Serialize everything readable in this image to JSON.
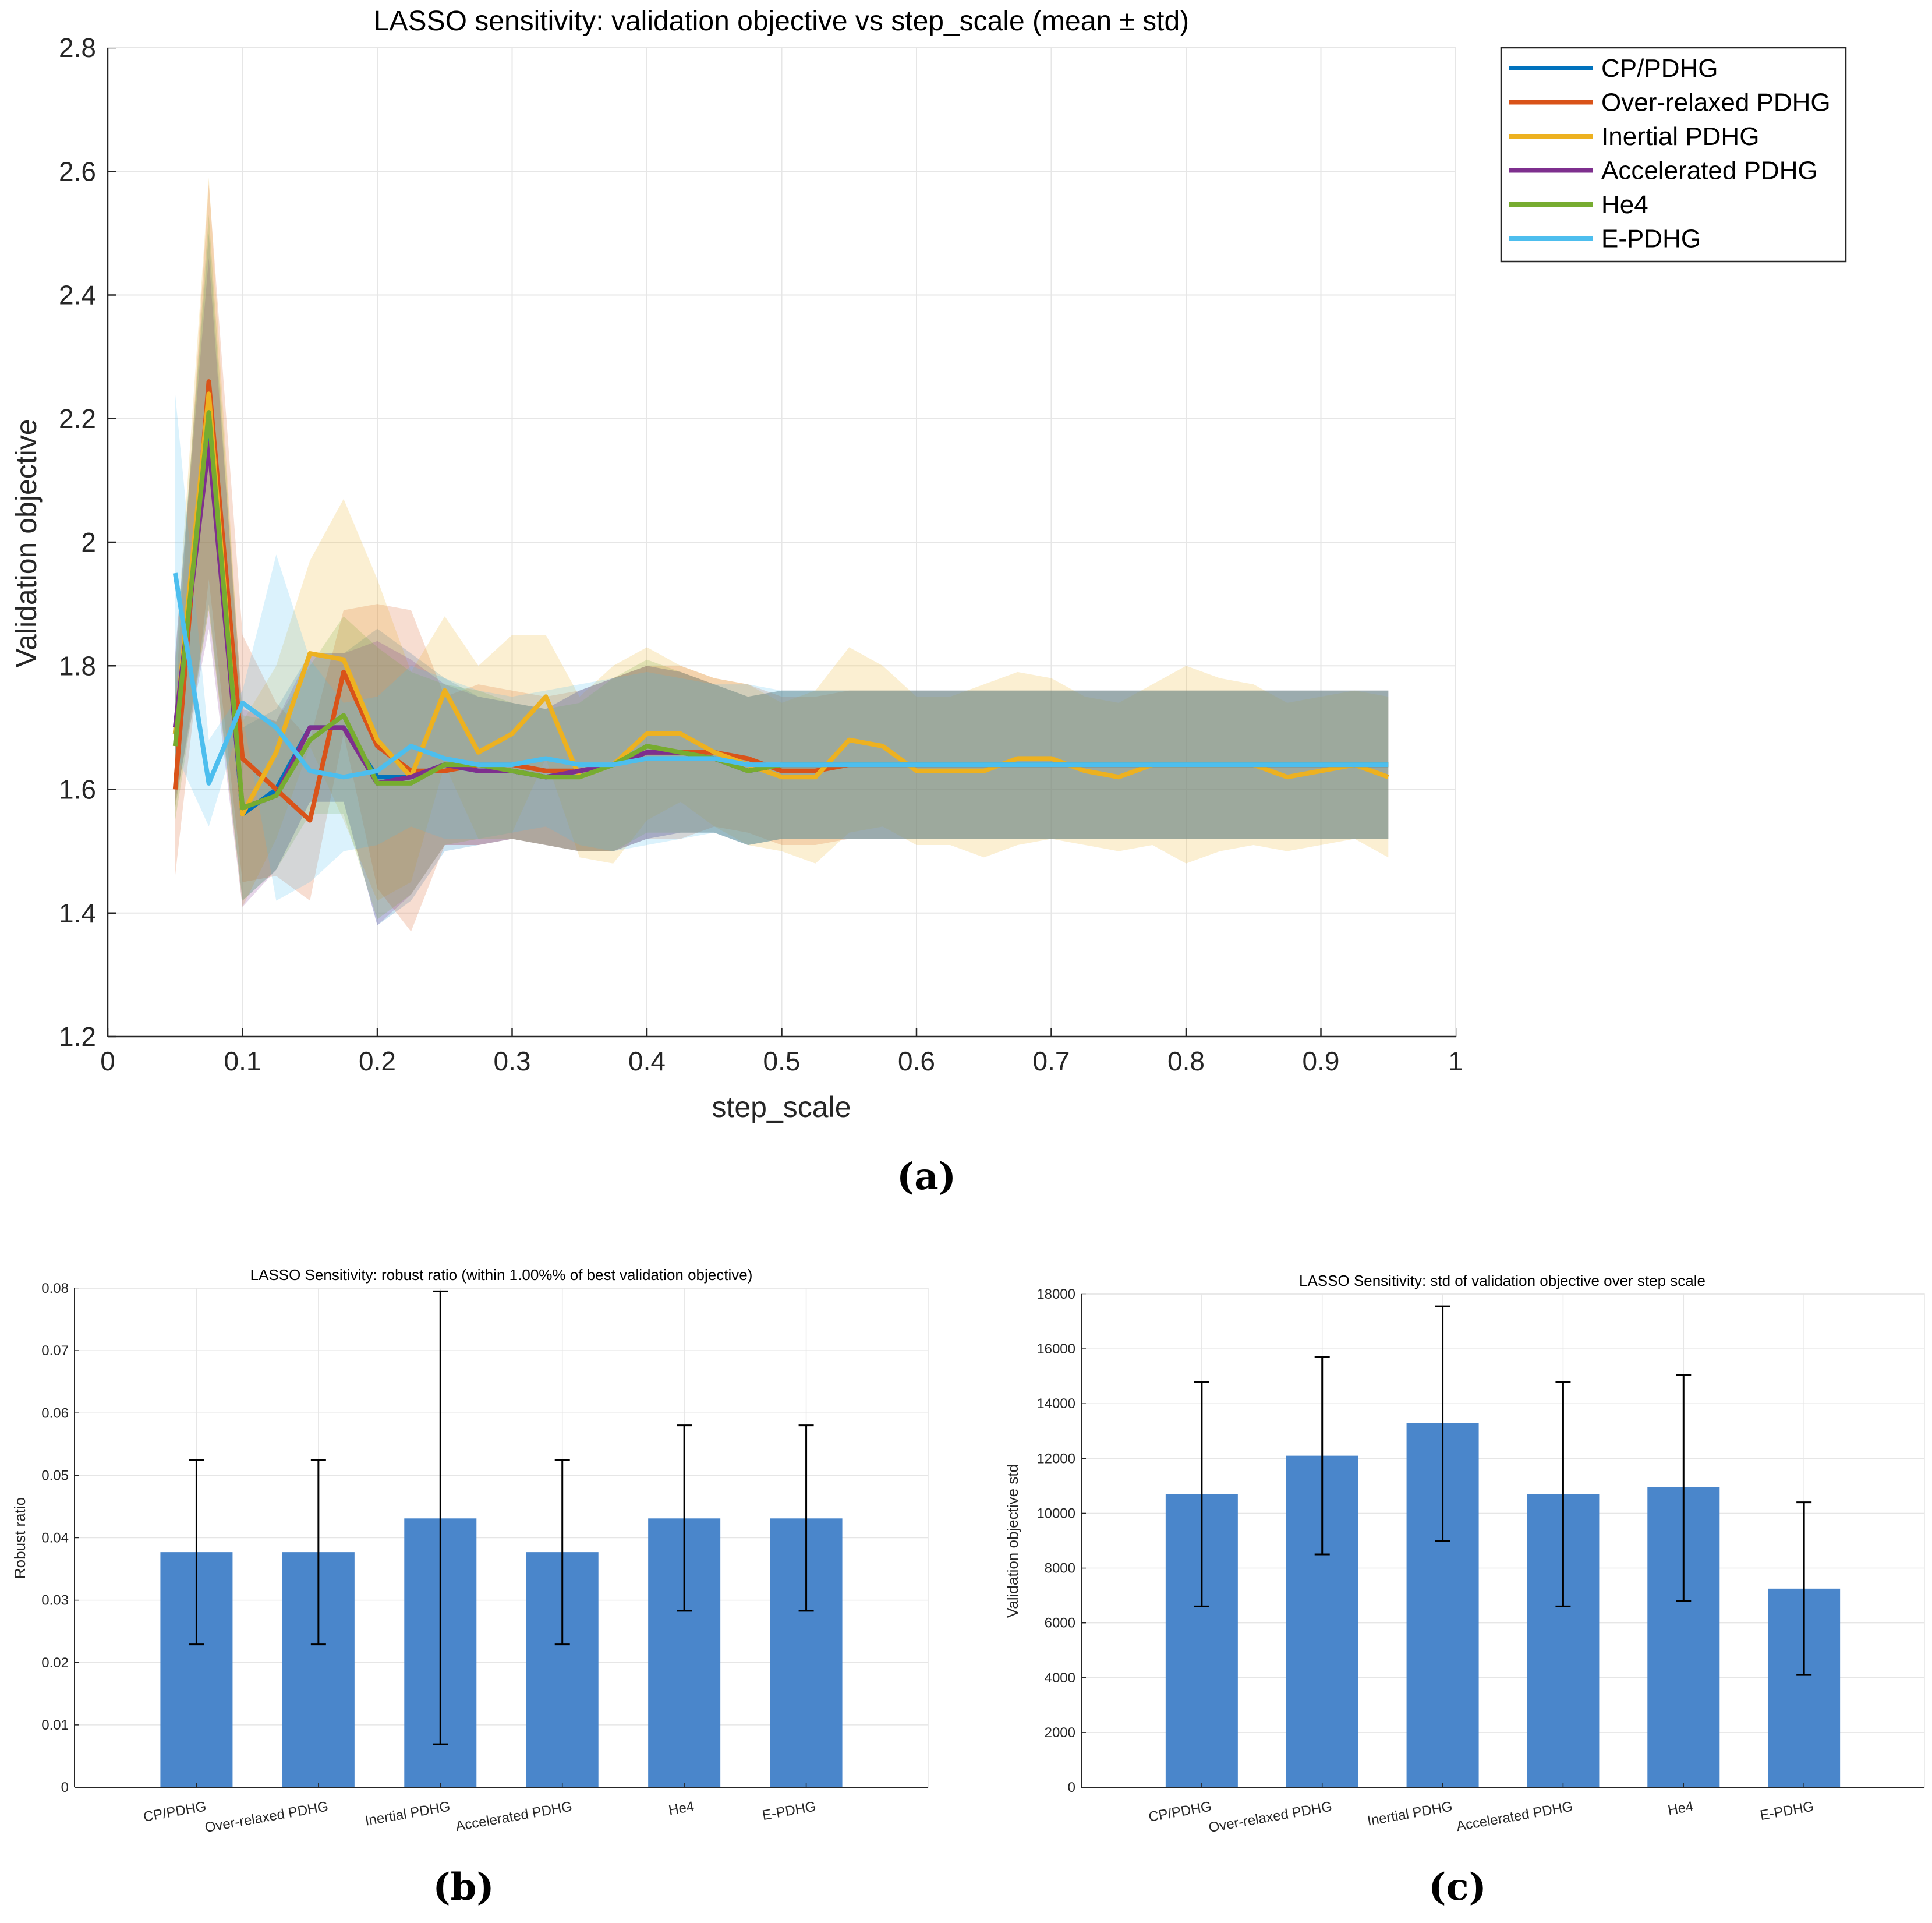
{
  "colors": {
    "CP/PDHG": "#0072BD",
    "Over-relaxed PDHG": "#D95319",
    "Inertial PDHG": "#EDB120",
    "Accelerated PDHG": "#7E2F8E",
    "He4": "#77AC30",
    "E-PDHG": "#4DBEEE",
    "bar": "#4A86CB",
    "axis": "#262626",
    "grid": "#E6E6E6"
  },
  "chart_data": [
    {
      "id": "a",
      "type": "line",
      "caption": "(a)",
      "title": "LASSO sensitivity: validation objective vs step_scale (mean ± std)",
      "xlabel": "step_scale",
      "ylabel": "Validation objective",
      "xlim": [
        0,
        1
      ],
      "ylim": [
        1.2,
        2.8
      ],
      "xticks": [
        0,
        0.1,
        0.2,
        0.3,
        0.4,
        0.5,
        0.6,
        0.7,
        0.8,
        0.9,
        1
      ],
      "xtick_labels": [
        "0",
        "0.1",
        "0.2",
        "0.3",
        "0.4",
        "0.5",
        "0.6",
        "0.7",
        "0.8",
        "0.9",
        "1"
      ],
      "yticks": [
        1.2,
        1.4,
        1.6,
        1.8,
        2,
        2.2,
        2.4,
        2.6,
        2.8
      ],
      "ytick_labels": [
        "1.2",
        "1.4",
        "1.6",
        "1.8",
        "2",
        "2.2",
        "2.4",
        "2.6",
        "2.8"
      ],
      "grid": true,
      "legend_position": "outside-top-right",
      "x": [
        0.05,
        0.075,
        0.1,
        0.125,
        0.15,
        0.175,
        0.2,
        0.225,
        0.25,
        0.275,
        0.3,
        0.325,
        0.35,
        0.375,
        0.4,
        0.425,
        0.45,
        0.475,
        0.5,
        0.525,
        0.55,
        0.575,
        0.6,
        0.625,
        0.65,
        0.675,
        0.7,
        0.725,
        0.75,
        0.775,
        0.8,
        0.825,
        0.85,
        0.875,
        0.9,
        0.925,
        0.95
      ],
      "series": [
        {
          "name": "CP/PDHG",
          "mean": [
            1.69,
            2.2,
            1.56,
            1.6,
            1.7,
            1.7,
            1.62,
            1.62,
            1.64,
            1.63,
            1.63,
            1.62,
            1.63,
            1.64,
            1.66,
            1.66,
            1.65,
            1.63,
            1.64,
            1.64,
            1.64,
            1.64,
            1.64,
            1.64,
            1.64,
            1.64,
            1.64,
            1.64,
            1.64,
            1.64,
            1.64,
            1.64,
            1.64,
            1.64,
            1.64,
            1.64,
            1.64
          ],
          "std": [
            0.12,
            0.3,
            0.14,
            0.13,
            0.12,
            0.12,
            0.24,
            0.2,
            0.14,
            0.12,
            0.11,
            0.11,
            0.13,
            0.14,
            0.14,
            0.13,
            0.12,
            0.12,
            0.12,
            0.12,
            0.12,
            0.12,
            0.12,
            0.12,
            0.12,
            0.12,
            0.12,
            0.12,
            0.12,
            0.12,
            0.12,
            0.12,
            0.12,
            0.12,
            0.12,
            0.12,
            0.12
          ]
        },
        {
          "name": "Over-relaxed PDHG",
          "mean": [
            1.6,
            2.26,
            1.65,
            1.6,
            1.55,
            1.79,
            1.67,
            1.63,
            1.63,
            1.64,
            1.64,
            1.63,
            1.63,
            1.64,
            1.66,
            1.66,
            1.66,
            1.65,
            1.63,
            1.63,
            1.64,
            1.64,
            1.64,
            1.64,
            1.64,
            1.64,
            1.64,
            1.64,
            1.64,
            1.64,
            1.64,
            1.64,
            1.64,
            1.64,
            1.64,
            1.64,
            1.64
          ],
          "std": [
            0.14,
            0.32,
            0.2,
            0.14,
            0.13,
            0.1,
            0.23,
            0.26,
            0.12,
            0.13,
            0.12,
            0.12,
            0.13,
            0.14,
            0.14,
            0.14,
            0.12,
            0.12,
            0.12,
            0.12,
            0.12,
            0.12,
            0.12,
            0.12,
            0.12,
            0.12,
            0.12,
            0.12,
            0.12,
            0.12,
            0.12,
            0.12,
            0.12,
            0.12,
            0.12,
            0.12,
            0.12
          ]
        },
        {
          "name": "Inertial PDHG",
          "mean": [
            1.69,
            2.24,
            1.56,
            1.66,
            1.82,
            1.81,
            1.68,
            1.62,
            1.76,
            1.66,
            1.69,
            1.75,
            1.62,
            1.64,
            1.69,
            1.69,
            1.66,
            1.64,
            1.62,
            1.62,
            1.68,
            1.67,
            1.63,
            1.63,
            1.63,
            1.65,
            1.65,
            1.63,
            1.62,
            1.64,
            1.64,
            1.64,
            1.64,
            1.62,
            1.63,
            1.64,
            1.62
          ],
          "std": [
            0.12,
            0.35,
            0.15,
            0.14,
            0.15,
            0.26,
            0.26,
            0.17,
            0.12,
            0.14,
            0.16,
            0.1,
            0.13,
            0.16,
            0.14,
            0.11,
            0.12,
            0.13,
            0.12,
            0.14,
            0.15,
            0.13,
            0.12,
            0.12,
            0.14,
            0.14,
            0.13,
            0.12,
            0.12,
            0.13,
            0.16,
            0.14,
            0.13,
            0.12,
            0.12,
            0.12,
            0.13
          ]
        },
        {
          "name": "Accelerated PDHG",
          "mean": [
            1.7,
            2.16,
            1.57,
            1.59,
            1.7,
            1.7,
            1.61,
            1.62,
            1.64,
            1.63,
            1.63,
            1.62,
            1.63,
            1.64,
            1.66,
            1.66,
            1.65,
            1.63,
            1.64,
            1.64,
            1.64,
            1.64,
            1.64,
            1.64,
            1.64,
            1.64,
            1.64,
            1.64,
            1.64,
            1.64,
            1.64,
            1.64,
            1.64,
            1.64,
            1.64,
            1.64,
            1.64
          ],
          "std": [
            0.12,
            0.3,
            0.16,
            0.12,
            0.12,
            0.12,
            0.23,
            0.19,
            0.13,
            0.12,
            0.11,
            0.11,
            0.13,
            0.14,
            0.14,
            0.13,
            0.12,
            0.12,
            0.12,
            0.12,
            0.12,
            0.12,
            0.12,
            0.12,
            0.12,
            0.12,
            0.12,
            0.12,
            0.12,
            0.12,
            0.12,
            0.12,
            0.12,
            0.12,
            0.12,
            0.12,
            0.12
          ]
        },
        {
          "name": "He4",
          "mean": [
            1.67,
            2.21,
            1.57,
            1.59,
            1.68,
            1.72,
            1.61,
            1.61,
            1.64,
            1.64,
            1.63,
            1.62,
            1.62,
            1.64,
            1.67,
            1.66,
            1.65,
            1.63,
            1.64,
            1.64,
            1.64,
            1.64,
            1.64,
            1.64,
            1.64,
            1.64,
            1.64,
            1.64,
            1.64,
            1.64,
            1.64,
            1.64,
            1.64,
            1.64,
            1.64,
            1.64,
            1.64
          ],
          "std": [
            0.12,
            0.32,
            0.15,
            0.12,
            0.12,
            0.16,
            0.22,
            0.18,
            0.13,
            0.12,
            0.11,
            0.11,
            0.12,
            0.14,
            0.14,
            0.13,
            0.12,
            0.12,
            0.12,
            0.12,
            0.12,
            0.12,
            0.12,
            0.12,
            0.12,
            0.12,
            0.12,
            0.12,
            0.12,
            0.12,
            0.12,
            0.12,
            0.12,
            0.12,
            0.12,
            0.12,
            0.12
          ]
        },
        {
          "name": "E-PDHG",
          "mean": [
            1.95,
            1.61,
            1.74,
            1.7,
            1.63,
            1.62,
            1.63,
            1.67,
            1.65,
            1.64,
            1.64,
            1.65,
            1.64,
            1.64,
            1.65,
            1.65,
            1.65,
            1.64,
            1.64,
            1.64,
            1.64,
            1.64,
            1.64,
            1.64,
            1.64,
            1.64,
            1.64,
            1.64,
            1.64,
            1.64,
            1.64,
            1.64,
            1.64,
            1.64,
            1.64,
            1.64,
            1.64
          ],
          "std": [
            0.29,
            0.07,
            0.02,
            0.28,
            0.18,
            0.12,
            0.12,
            0.13,
            0.13,
            0.12,
            0.11,
            0.11,
            0.13,
            0.14,
            0.14,
            0.13,
            0.12,
            0.13,
            0.12,
            0.12,
            0.12,
            0.12,
            0.12,
            0.12,
            0.12,
            0.12,
            0.12,
            0.12,
            0.12,
            0.12,
            0.12,
            0.12,
            0.12,
            0.12,
            0.12,
            0.12,
            0.12
          ]
        }
      ]
    },
    {
      "id": "b",
      "type": "bar",
      "caption": "(b)",
      "title": "LASSO Sensitivity: robust ratio (within 1.00%% of best validation objective)",
      "xlabel": "",
      "ylabel": "Robust ratio",
      "categories": [
        "CP/PDHG",
        "Over-relaxed PDHG",
        "Inertial PDHG",
        "Accelerated PDHG",
        "He4",
        "E-PDHG"
      ],
      "values": [
        0.0377,
        0.0377,
        0.0431,
        0.0377,
        0.0431,
        0.0431
      ],
      "err_low": [
        0.0229,
        0.0229,
        0.0069,
        0.0229,
        0.0283,
        0.0283
      ],
      "err_high": [
        0.0525,
        0.0525,
        0.0795,
        0.0525,
        0.058,
        0.058
      ],
      "ylim": [
        0,
        0.08
      ],
      "yticks": [
        0,
        0.01,
        0.02,
        0.03,
        0.04,
        0.05,
        0.06,
        0.07,
        0.08
      ],
      "ytick_labels": [
        "0",
        "0.01",
        "0.02",
        "0.03",
        "0.04",
        "0.05",
        "0.06",
        "0.07",
        "0.08"
      ],
      "grid": true
    },
    {
      "id": "c",
      "type": "bar",
      "caption": "(c)",
      "title": "LASSO Sensitivity: std of validation objective over step scale",
      "xlabel": "",
      "ylabel": "Validation objective std",
      "categories": [
        "CP/PDHG",
        "Over-relaxed PDHG",
        "Inertial PDHG",
        "Accelerated PDHG",
        "He4",
        "E-PDHG"
      ],
      "values": [
        10700,
        12100,
        13300,
        10700,
        10950,
        7250
      ],
      "err_low": [
        6600,
        8500,
        9000,
        6600,
        6800,
        4100
      ],
      "err_high": [
        14800,
        15700,
        17550,
        14800,
        15050,
        10400
      ],
      "ylim": [
        0,
        18000
      ],
      "yticks": [
        0,
        2000,
        4000,
        6000,
        8000,
        10000,
        12000,
        14000,
        16000,
        18000
      ],
      "ytick_labels": [
        "0",
        "2000",
        "4000",
        "6000",
        "8000",
        "10000",
        "12000",
        "14000",
        "16000",
        "18000"
      ],
      "grid": true
    }
  ]
}
